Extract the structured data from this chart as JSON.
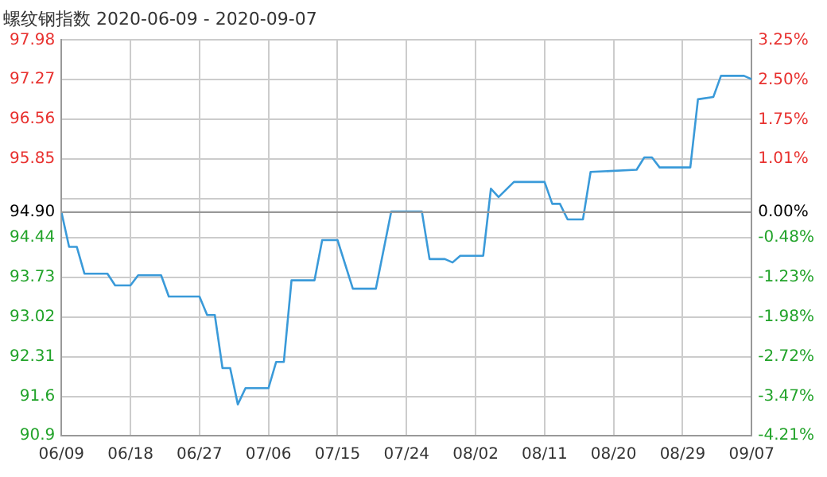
{
  "chart_data": {
    "type": "line",
    "title": "螺纹钢指数 2020-06-09 - 2020-09-07",
    "x": [
      "2020-06-09",
      "2020-06-10",
      "2020-06-11",
      "2020-06-12",
      "2020-06-15",
      "2020-06-16",
      "2020-06-18",
      "2020-06-19",
      "2020-06-22",
      "2020-06-23",
      "2020-06-27",
      "2020-06-28",
      "2020-06-29",
      "2020-06-30",
      "2020-07-01",
      "2020-07-02",
      "2020-07-03",
      "2020-07-06",
      "2020-07-07",
      "2020-07-08",
      "2020-07-09",
      "2020-07-12",
      "2020-07-13",
      "2020-07-15",
      "2020-07-17",
      "2020-07-20",
      "2020-07-22",
      "2020-07-26",
      "2020-07-27",
      "2020-07-29",
      "2020-07-30",
      "2020-07-31",
      "2020-08-03",
      "2020-08-04",
      "2020-08-05",
      "2020-08-07",
      "2020-08-11",
      "2020-08-12",
      "2020-08-13",
      "2020-08-14",
      "2020-08-16",
      "2020-08-17",
      "2020-08-23",
      "2020-08-24",
      "2020-08-25",
      "2020-08-26",
      "2020-08-30",
      "2020-08-31",
      "2020-09-02",
      "2020-09-03",
      "2020-09-06",
      "2020-09-07"
    ],
    "series": [
      {
        "color": "#3a9ad9",
        "values": [
          94.9,
          94.28,
          94.28,
          93.8,
          93.8,
          93.59,
          93.59,
          93.77,
          93.77,
          93.39,
          93.39,
          93.06,
          93.06,
          92.11,
          92.11,
          91.46,
          91.75,
          91.75,
          92.22,
          92.22,
          93.68,
          93.68,
          94.4,
          94.4,
          93.53,
          93.53,
          94.91,
          94.91,
          94.06,
          94.06,
          94.0,
          94.12,
          94.12,
          95.32,
          95.17,
          95.44,
          95.44,
          95.05,
          95.05,
          94.77,
          94.77,
          95.62,
          95.66,
          95.88,
          95.88,
          95.7,
          95.7,
          96.92,
          96.96,
          97.34,
          97.34,
          97.28
        ]
      }
    ],
    "xlim": [
      "2020-06-09",
      "2020-09-07"
    ],
    "xticks": [
      {
        "value": "2020-06-09",
        "label": "06/09"
      },
      {
        "value": "2020-06-18",
        "label": "06/18"
      },
      {
        "value": "2020-06-27",
        "label": "06/27"
      },
      {
        "value": "2020-07-06",
        "label": "07/06"
      },
      {
        "value": "2020-07-15",
        "label": "07/15"
      },
      {
        "value": "2020-07-24",
        "label": "07/24"
      },
      {
        "value": "2020-08-02",
        "label": "08/02"
      },
      {
        "value": "2020-08-11",
        "label": "08/11"
      },
      {
        "value": "2020-08-20",
        "label": "08/20"
      },
      {
        "value": "2020-08-29",
        "label": "08/29"
      },
      {
        "value": "2020-09-07",
        "label": "09/07"
      }
    ],
    "ylim": [
      90.9,
      97.98
    ],
    "yticks": [
      97.98,
      97.27,
      96.56,
      95.85,
      {
        "value": 95.14,
        "label": null
      },
      {
        "value": 94.9,
        "label": "94.90"
      },
      94.44,
      93.73,
      93.02,
      92.31,
      91.6,
      90.9
    ],
    "y2lim": [
      -4.21,
      3.25
    ],
    "y2ticks": [
      {
        "value": 3.25,
        "label": "3.25%"
      },
      {
        "value": 2.5,
        "label": "2.50%"
      },
      {
        "value": 1.75,
        "label": "1.75%"
      },
      {
        "value": 1.01,
        "label": "1.01%"
      },
      {
        "value": 0,
        "label": "0.00%"
      },
      {
        "value": -0.48,
        "label": "-0.48%"
      },
      {
        "value": -1.23,
        "label": "-1.23%"
      },
      {
        "value": -1.98,
        "label": "-1.98%"
      },
      {
        "value": -2.72,
        "label": "-2.72%"
      },
      {
        "value": -3.47,
        "label": "-3.47%"
      },
      {
        "value": -4.21,
        "label": "-4.21%"
      }
    ],
    "ref_lines": [
      {
        "axis": "y",
        "value": 94.9,
        "color": "#999999"
      }
    ],
    "grid": true,
    "legend": false,
    "marker": "none",
    "line_style": "solid"
  }
}
